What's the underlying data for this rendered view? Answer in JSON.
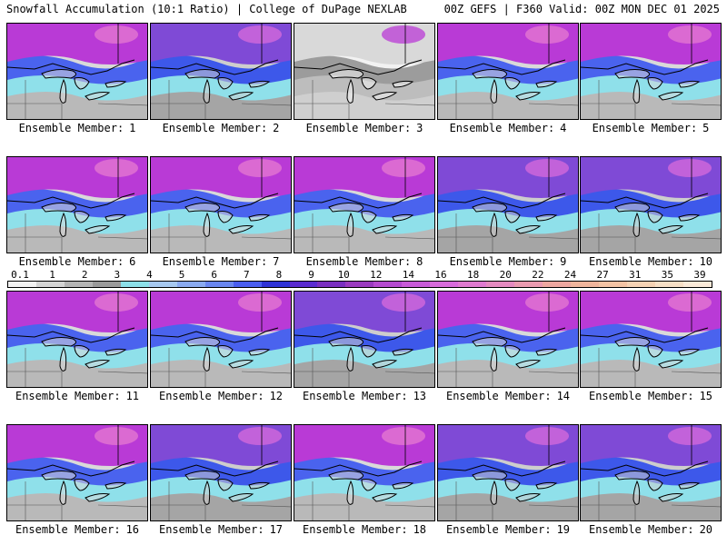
{
  "header": {
    "left": "Snowfall Accumulation (10:1 Ratio) | College of DuPage NEXLAB",
    "right": "00Z GEFS | F360 Valid: 00Z MON DEC 01 2025"
  },
  "member_prefix": "Ensemble Member:",
  "members": [
    {
      "number": "1",
      "palette": "a"
    },
    {
      "number": "2",
      "palette": "b"
    },
    {
      "number": "3",
      "palette": "c"
    },
    {
      "number": "4",
      "palette": "a"
    },
    {
      "number": "5",
      "palette": "a"
    },
    {
      "number": "6",
      "palette": "a"
    },
    {
      "number": "7",
      "palette": "a"
    },
    {
      "number": "8",
      "palette": "a"
    },
    {
      "number": "9",
      "palette": "b"
    },
    {
      "number": "10",
      "palette": "b"
    },
    {
      "number": "11",
      "palette": "a"
    },
    {
      "number": "12",
      "palette": "a"
    },
    {
      "number": "13",
      "palette": "b"
    },
    {
      "number": "14",
      "palette": "a"
    },
    {
      "number": "15",
      "palette": "a"
    },
    {
      "number": "16",
      "palette": "a"
    },
    {
      "number": "17",
      "palette": "b"
    },
    {
      "number": "18",
      "palette": "a"
    },
    {
      "number": "19",
      "palette": "b"
    },
    {
      "number": "20",
      "palette": "b"
    }
  ],
  "colorbar": {
    "labels": [
      "0.1",
      "1",
      "2",
      "3",
      "4",
      "5",
      "6",
      "7",
      "8",
      "9",
      "10",
      "12",
      "14",
      "16",
      "18",
      "20",
      "22",
      "24",
      "27",
      "31",
      "35",
      "39"
    ],
    "colors": [
      "#f2f2f2",
      "#d4d4d4",
      "#b4b4b4",
      "#9a9a9a",
      "#8cdfe8",
      "#a6c8ef",
      "#8aaaf0",
      "#6a86ef",
      "#4a5ef0",
      "#2f33d6",
      "#5a2bd0",
      "#7a2fc0",
      "#9a3abf",
      "#b54ad0",
      "#c85ad8",
      "#d86bdb",
      "#e07ad0",
      "#e58ac0",
      "#ea9ab0",
      "#eda7a0",
      "#f0b59c",
      "#f3c3a4",
      "#f5d2b4",
      "#f7dfc6",
      "#fae9d8"
    ]
  },
  "palettes": {
    "a": {
      "north": "#b93ad6",
      "mid": "#4a63ee",
      "band": "#8fe0ea",
      "south": "#b9b9b9",
      "light": "#d9d9d9",
      "hot": "#e77bd0"
    },
    "b": {
      "north": "#7f4ad6",
      "mid": "#3d58ea",
      "band": "#8fe0ea",
      "south": "#a5a5a5",
      "light": "#cdcdcd",
      "hot": "#d86bdb"
    },
    "c": {
      "north": "#d9d9d9",
      "mid": "#9c9c9c",
      "band": "#bdbdbd",
      "south": "#cfcfcf",
      "light": "#f2f2f2",
      "hot": "#b93ad6"
    }
  }
}
